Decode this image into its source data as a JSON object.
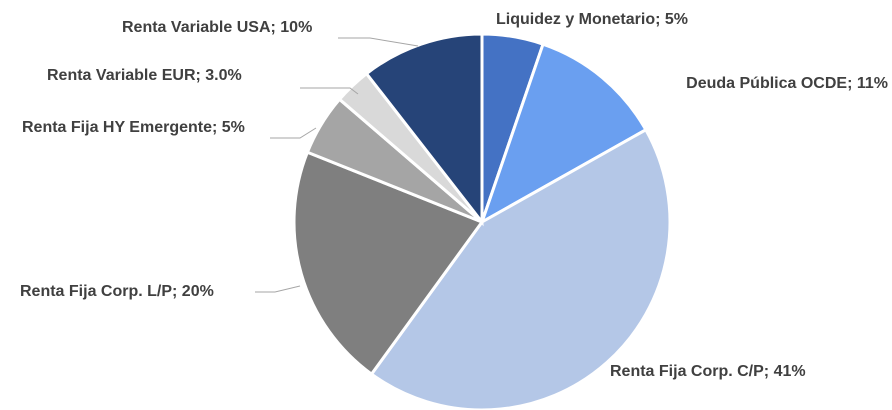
{
  "chart_data": {
    "type": "pie",
    "categories": [
      "Liquidez y Monetario",
      "Deuda Pública OCDE",
      "Renta Fija Corp. C/P",
      "Renta Fija Corp. L/P",
      "Renta Fija HY Emergente",
      "Renta Variable EUR",
      "Renta Variable USA"
    ],
    "values": [
      5,
      11,
      41,
      20,
      5,
      3.0,
      10
    ],
    "value_labels": [
      "5%",
      "11%",
      "41%",
      "20%",
      "5%",
      "3.0%",
      "10%"
    ],
    "label_separator": "; ",
    "colors": [
      "#4472c4",
      "#6a9ff0",
      "#b4c7e7",
      "#7f7f7f",
      "#a5a5a5",
      "#d9d9d9",
      "#264478"
    ]
  }
}
